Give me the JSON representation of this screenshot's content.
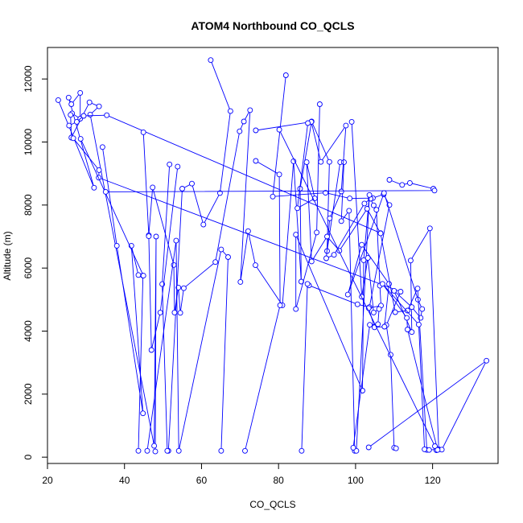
{
  "chart_data": {
    "type": "line",
    "title": "ATOM4 Northbound CO_QCLS",
    "xlabel": "CO_QCLS",
    "ylabel": "Altitude (m)",
    "xlim": [
      20,
      137
    ],
    "ylim": [
      -200,
      13000
    ],
    "x_ticks": [
      20,
      40,
      60,
      80,
      100,
      120
    ],
    "y_ticks": [
      0,
      2000,
      4000,
      6000,
      8000,
      10000,
      12000
    ],
    "grid": false,
    "legend": "none",
    "color": "#0000ff",
    "series": [
      {
        "points": [
          [
            62.4,
            12600
          ],
          [
            67.5,
            10980
          ],
          [
            64.8,
            8380
          ],
          [
            60.5,
            7380
          ],
          [
            57.5,
            8680
          ],
          [
            55.0,
            8520
          ],
          [
            51.4,
            200
          ]
        ]
      },
      {
        "points": [
          [
            81.9,
            12120
          ],
          [
            78.5,
            8270
          ],
          [
            92.2,
            8390
          ],
          [
            98.5,
            8210
          ],
          [
            104.5,
            8220
          ],
          [
            107.3,
            8340
          ],
          [
            108.8,
            8000
          ],
          [
            103.6,
            4760
          ],
          [
            100.5,
            4850
          ],
          [
            87.9,
            5450
          ],
          [
            87.5,
            5500
          ],
          [
            86.0,
            200
          ]
        ]
      },
      {
        "points": [
          [
            22.8,
            11330
          ],
          [
            32.1,
            8550
          ],
          [
            25.5,
            11410
          ],
          [
            26.2,
            11200
          ],
          [
            28.5,
            11560
          ],
          [
            28.5,
            10740
          ],
          [
            26.4,
            10910
          ],
          [
            26.0,
            10860
          ],
          [
            26.2,
            10140
          ],
          [
            30.9,
            11260
          ],
          [
            33.4,
            11130
          ],
          [
            31.1,
            10870
          ],
          [
            47.7,
            360
          ],
          [
            48.2,
            7000
          ],
          [
            48.0,
            180
          ]
        ]
      },
      {
        "points": [
          [
            25.6,
            10520
          ],
          [
            27.6,
            10640
          ],
          [
            29.4,
            10830
          ],
          [
            35.4,
            10850
          ],
          [
            106.5,
            7110
          ]
        ]
      },
      {
        "points": [
          [
            26.7,
            10120
          ],
          [
            33.4,
            9110
          ],
          [
            33.3,
            8870
          ],
          [
            111.7,
            5250
          ],
          [
            108.0,
            4190
          ],
          [
            109.1,
            3250
          ],
          [
            110.0,
            300
          ],
          [
            110.5,
            280
          ]
        ]
      },
      {
        "points": [
          [
            34.3,
            9840
          ],
          [
            38.0,
            6710
          ],
          [
            44.8,
            1390
          ],
          [
            41.8,
            6710
          ],
          [
            43.6,
            5780
          ],
          [
            44.8,
            5760
          ],
          [
            43.6,
            200
          ]
        ]
      },
      {
        "points": [
          [
            28.6,
            10100
          ],
          [
            44.9,
            5760
          ]
        ]
      },
      {
        "points": [
          [
            44.9,
            10310
          ],
          [
            46.3,
            7040
          ],
          [
            47.3,
            8560
          ],
          [
            52.8,
            6100
          ],
          [
            53.0,
            4590
          ],
          [
            54.0,
            5380
          ],
          [
            54.5,
            4580
          ],
          [
            55.4,
            5360
          ],
          [
            63.6,
            6190
          ],
          [
            69.9,
            10340
          ],
          [
            71.0,
            10650
          ],
          [
            72.6,
            11010
          ],
          [
            70.1,
            5560
          ],
          [
            72.1,
            7170
          ],
          [
            74.0,
            6090
          ],
          [
            81.0,
            4820
          ],
          [
            83.9,
            9390
          ],
          [
            85.9,
            5570
          ],
          [
            85.6,
            8520
          ],
          [
            88.6,
            10650
          ],
          [
            93.2,
            9370
          ],
          [
            92.6,
            6540
          ],
          [
            96.0,
            9360
          ],
          [
            97.0,
            9360
          ],
          [
            96.3,
            7490
          ],
          [
            98.3,
            7820
          ],
          [
            99.8,
            200
          ]
        ]
      },
      {
        "points": [
          [
            45.9,
            200
          ],
          [
            53.4,
            6870
          ],
          [
            54.1,
            200
          ],
          [
            65.1,
            6590
          ],
          [
            66.9,
            6350
          ],
          [
            65.1,
            200
          ]
        ]
      },
      {
        "points": [
          [
            51.7,
            9290
          ],
          [
            49.8,
            5490
          ],
          [
            51.1,
            200
          ]
        ]
      },
      {
        "points": [
          [
            53.8,
            9220
          ],
          [
            49.3,
            4590
          ],
          [
            47.0,
            3400
          ],
          [
            46.3,
            7010
          ]
        ]
      },
      {
        "points": [
          [
            74.1,
            9400
          ],
          [
            80.2,
            8970
          ],
          [
            80.4,
            4820
          ],
          [
            71.3,
            200
          ]
        ]
      },
      {
        "points": [
          [
            74.1,
            10370
          ],
          [
            88.5,
            10640
          ],
          [
            91.0,
            9370
          ],
          [
            97.5,
            10520
          ],
          [
            96.3,
            8430
          ],
          [
            93.3,
            7580
          ],
          [
            92.4,
            6310
          ],
          [
            94.4,
            6420
          ],
          [
            102.3,
            8050
          ],
          [
            103.9,
            8200
          ],
          [
            104.7,
            7990
          ],
          [
            105.4,
            7850
          ],
          [
            106.3,
            5440
          ],
          [
            106.6,
            4810
          ],
          [
            103.4,
            4730
          ],
          [
            104.9,
            4120
          ],
          [
            107.5,
            4140
          ],
          [
            108.7,
            5500
          ],
          [
            101.6,
            6740
          ],
          [
            98.0,
            5160
          ],
          [
            107.4,
            8380
          ],
          [
            116.2,
            5000
          ],
          [
            117.3,
            4700
          ],
          [
            116.9,
            4420
          ],
          [
            114.6,
            4760
          ],
          [
            110.0,
            5280
          ],
          [
            114.6,
            3970
          ],
          [
            114.3,
            6240
          ],
          [
            119.3,
            7260
          ],
          [
            121.6,
            250
          ]
        ]
      },
      {
        "points": [
          [
            90.7,
            11200
          ],
          [
            89.9,
            7130
          ],
          [
            84.5,
            4700
          ],
          [
            84.5,
            7060
          ],
          [
            101.8,
            2110
          ],
          [
            102.1,
            6250
          ],
          [
            103.6,
            8320
          ],
          [
            100.2,
            200
          ]
        ]
      },
      {
        "points": [
          [
            99.0,
            10640
          ],
          [
            101.6,
            5090
          ],
          [
            103.2,
            6320
          ],
          [
            104.7,
            4590
          ],
          [
            106.1,
            4700
          ],
          [
            105.8,
            4220
          ],
          [
            103.7,
            4200
          ],
          [
            99.4,
            300
          ]
        ]
      },
      {
        "points": [
          [
            108.8,
            8800
          ],
          [
            112.1,
            8640
          ],
          [
            114.1,
            8700
          ],
          [
            120.2,
            8520
          ],
          [
            120.5,
            8460
          ],
          [
            35.1,
            8420
          ]
        ]
      },
      {
        "points": [
          [
            87.6,
            10600
          ],
          [
            84.9,
            7900
          ],
          [
            89.4,
            8210
          ],
          [
            87.3,
            9360
          ],
          [
            88.6,
            6210
          ],
          [
            92.6,
            7000
          ],
          [
            95.8,
            6550
          ],
          [
            103.0,
            7880
          ],
          [
            106.5,
            7100
          ],
          [
            110.3,
            4600
          ],
          [
            113.5,
            4650
          ],
          [
            116.1,
            5350
          ],
          [
            118.5,
            230
          ],
          [
            119.1,
            230
          ],
          [
            121.4,
            250
          ],
          [
            121.0,
            220
          ],
          [
            122.4,
            240
          ],
          [
            134.0,
            3060
          ],
          [
            103.4,
            310
          ]
        ]
      },
      {
        "points": [
          [
            80.2,
            10390
          ],
          [
            120.6,
            350
          ],
          [
            121.3,
            230
          ],
          [
            113.5,
            4050
          ],
          [
            113.3,
            4420
          ],
          [
            107.0,
            5500
          ],
          [
            116.4,
            4210
          ],
          [
            117.9,
            250
          ]
        ]
      }
    ]
  }
}
